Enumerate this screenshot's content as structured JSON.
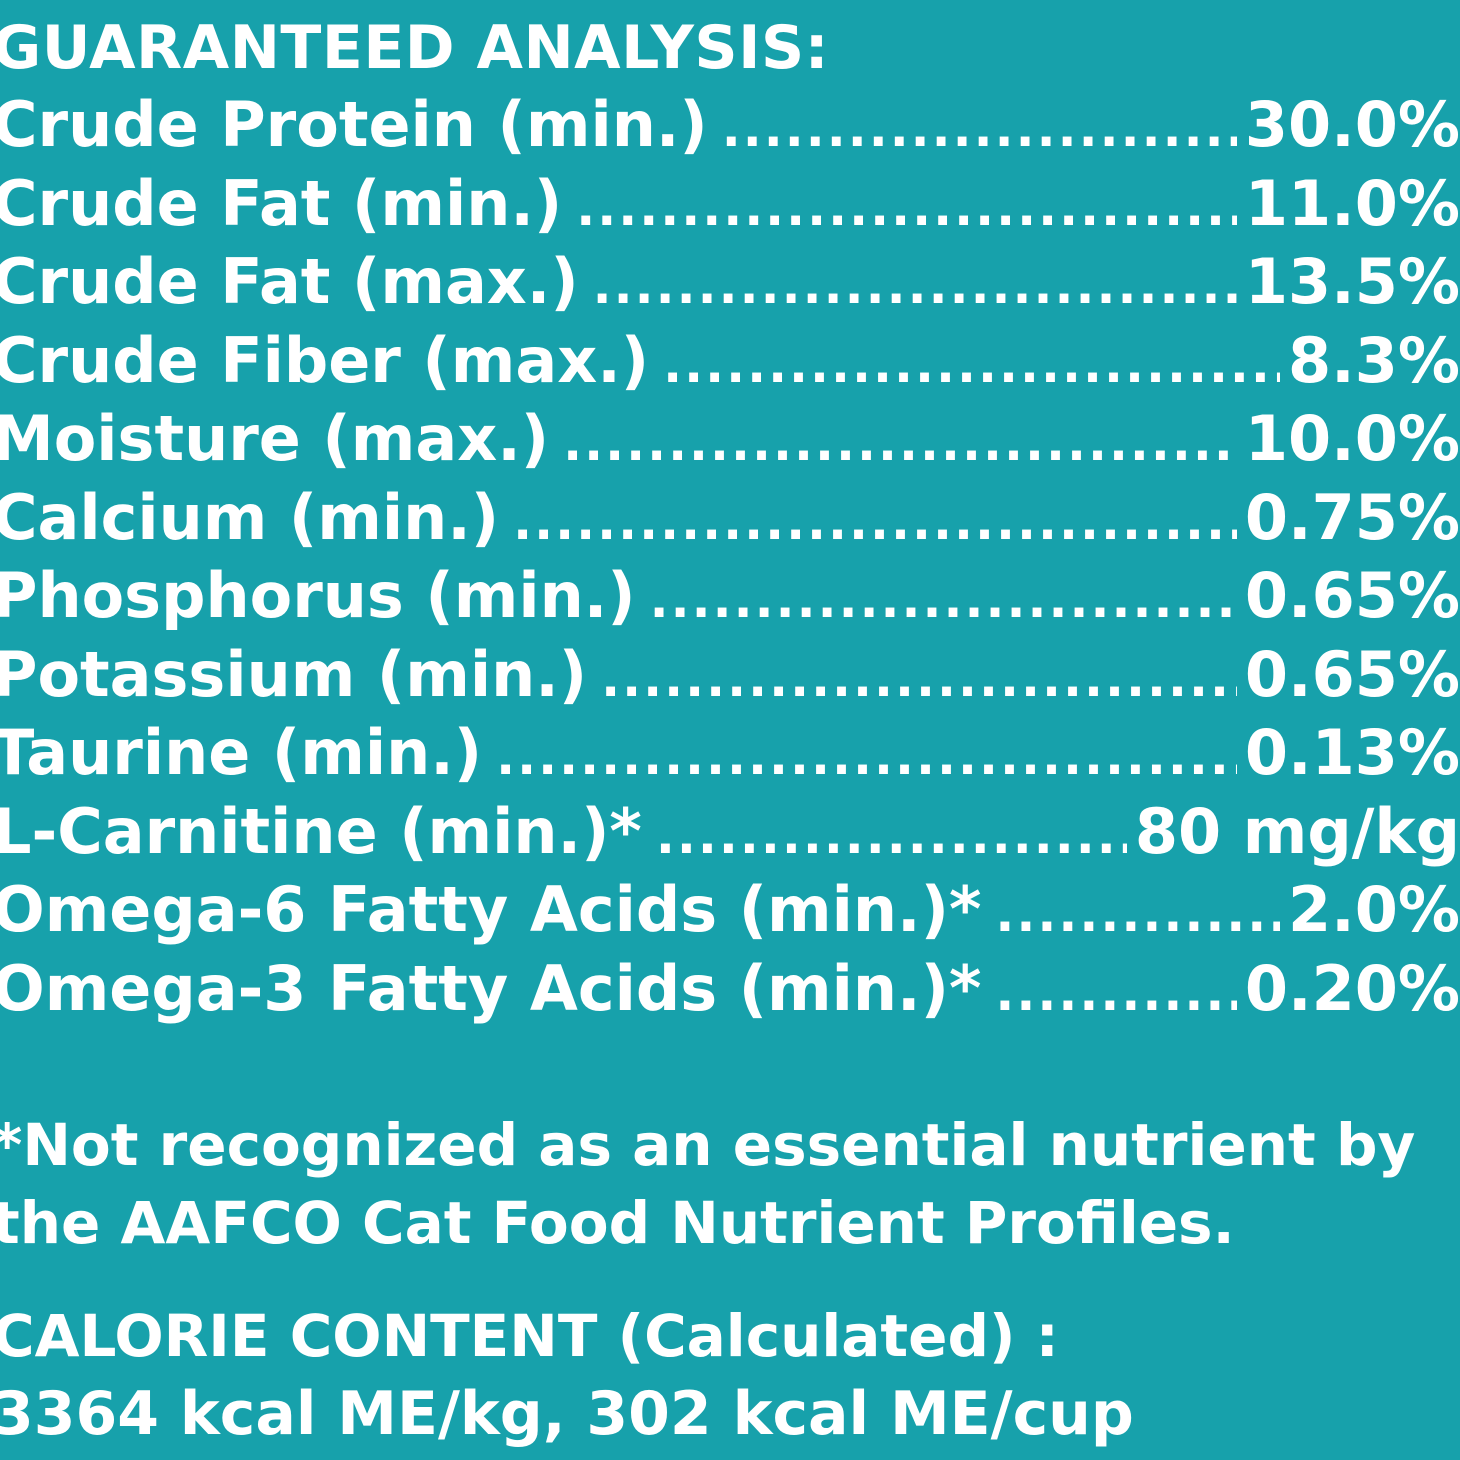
{
  "guaranteed_analysis": {
    "heading": "GUARANTEED ANALYSIS:",
    "rows": [
      {
        "label": "Crude Protein (min.)",
        "value": "30.0%"
      },
      {
        "label": "Crude Fat (min.)",
        "value": "11.0%"
      },
      {
        "label": "Crude Fat (max.)",
        "value": "13.5%"
      },
      {
        "label": "Crude Fiber (max.)",
        "value": "8.3%"
      },
      {
        "label": "Moisture (max.)",
        "value": "10.0%"
      },
      {
        "label": "Calcium (min.)",
        "value": "0.75%"
      },
      {
        "label": "Phosphorus (min.)",
        "value": "0.65%"
      },
      {
        "label": "Potassium (min.)",
        "value": "0.65%"
      },
      {
        "label": "Taurine (min.)",
        "value": "0.13%"
      },
      {
        "label": "L-Carnitine (min.)*",
        "value": "80 mg/kg"
      },
      {
        "label": "Omega-6 Fatty Acids (min.)*",
        "value": "2.0%"
      },
      {
        "label": "Omega-3 Fatty Acids (min.)*",
        "value": "0.20%"
      }
    ]
  },
  "footnote": {
    "line1": "*Not recognized as an essential nutrient by",
    "line2": "the AAFCO Cat Food Nutrient Profiles."
  },
  "calorie_content": {
    "heading": "CALORIE CONTENT (Calculated) :",
    "value": "3364 kcal ME/kg, 302 kcal ME/cup"
  },
  "colors": {
    "background": "#17a1ab",
    "text": "#ffffff"
  }
}
